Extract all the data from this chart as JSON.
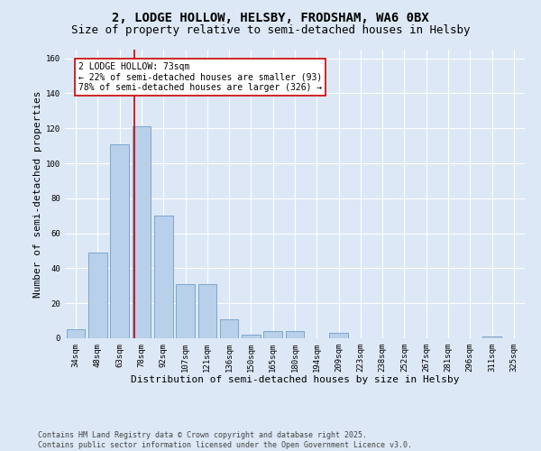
{
  "title_line1": "2, LODGE HOLLOW, HELSBY, FRODSHAM, WA6 0BX",
  "title_line2": "Size of property relative to semi-detached houses in Helsby",
  "xlabel": "Distribution of semi-detached houses by size in Helsby",
  "ylabel": "Number of semi-detached properties",
  "categories": [
    "34sqm",
    "48sqm",
    "63sqm",
    "78sqm",
    "92sqm",
    "107sqm",
    "121sqm",
    "136sqm",
    "150sqm",
    "165sqm",
    "180sqm",
    "194sqm",
    "209sqm",
    "223sqm",
    "238sqm",
    "252sqm",
    "267sqm",
    "281sqm",
    "296sqm",
    "311sqm",
    "325sqm"
  ],
  "values": [
    5,
    49,
    111,
    121,
    70,
    31,
    31,
    11,
    2,
    4,
    4,
    0,
    3,
    0,
    0,
    0,
    0,
    0,
    0,
    1,
    0
  ],
  "bar_color": "#b8d0ea",
  "bar_edge_color": "#6090c0",
  "background_color": "#dce8f5",
  "grid_color": "#ffffff",
  "vline_color": "#cc0000",
  "annotation_text": "2 LODGE HOLLOW: 73sqm\n← 22% of semi-detached houses are smaller (93)\n78% of semi-detached houses are larger (326) →",
  "annotation_box_color": "#ffffff",
  "annotation_box_edge": "#cc0000",
  "footer_text": "Contains HM Land Registry data © Crown copyright and database right 2025.\nContains public sector information licensed under the Open Government Licence v3.0.",
  "ylim": [
    0,
    165
  ],
  "yticks": [
    0,
    20,
    40,
    60,
    80,
    100,
    120,
    140,
    160
  ],
  "fig_width": 6.0,
  "fig_height": 5.0,
  "title_fontsize": 10,
  "subtitle_fontsize": 9,
  "axis_label_fontsize": 8,
  "tick_fontsize": 6.5,
  "annotation_fontsize": 7,
  "footer_fontsize": 6
}
